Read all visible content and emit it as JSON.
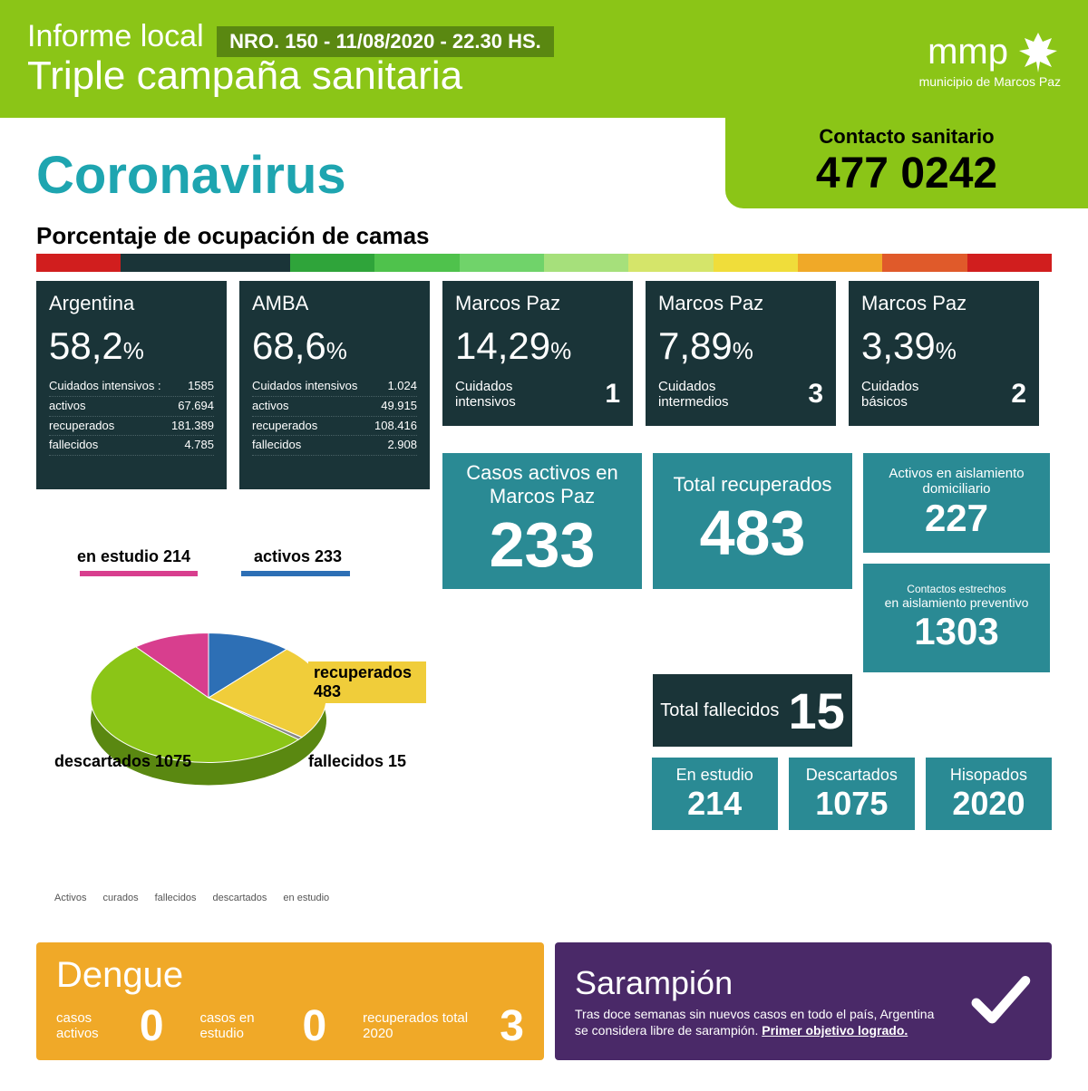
{
  "header": {
    "informe_label": "Informe local",
    "nro_badge": "NRO. 150 - 11/08/2020 - 22.30 HS.",
    "triple": "Triple campaña sanitaria",
    "logo_text": "mmp",
    "logo_sub": "municipio de Marcos Paz",
    "header_bg": "#8bc517",
    "badge_bg": "#5a8811"
  },
  "contact": {
    "label": "Contacto sanitario",
    "phone": "477 0242",
    "bg": "#8bc517"
  },
  "corona_title": "Coronavirus",
  "corona_title_color": "#1ea5b0",
  "occupancy_label": "Porcentaje de ocupación de camas",
  "color_strip": [
    "#d11e1e",
    "#1a3438",
    "#1a3438",
    "#2fa43a",
    "#4fc24c",
    "#70d36a",
    "#a6e07b",
    "#d5e56a",
    "#f0dd3a",
    "#f0a928",
    "#e05a2a",
    "#d11e1e"
  ],
  "cards": [
    {
      "title": "Argentina",
      "pct": "58,2",
      "tall": true,
      "lines": [
        {
          "label": "Cuidados intensivos :",
          "val": "1585"
        },
        {
          "label": "activos",
          "val": "67.694"
        },
        {
          "label": "recuperados",
          "val": "181.389"
        },
        {
          "label": "fallecidos",
          "val": "4.785"
        }
      ],
      "indicator_colors": [
        "#cfcfcf",
        "#a6e07b",
        "#70d36a",
        "#2fa43a",
        "#2a6b2e"
      ]
    },
    {
      "title": "AMBA",
      "pct": "68,6",
      "tall": true,
      "lines": [
        {
          "label": "Cuidados intensivos",
          "val": "1.024"
        },
        {
          "label": "activos",
          "val": "49.915"
        },
        {
          "label": "recuperados",
          "val": "108.416"
        },
        {
          "label": "fallecidos",
          "val": "2.908"
        }
      ],
      "indicator_colors": [
        "#cfcfcf",
        "#a6e07b",
        "#70d36a",
        "#2fa43a",
        "#2a6b2e"
      ]
    },
    {
      "title": "Marcos Paz",
      "pct": "14,29",
      "tall": false,
      "cuidados_label": "Cuidados intensivos",
      "cuidados_val": "1",
      "indicator_colors": [
        "#cfcfcf",
        "#cfcfcf",
        "#cfcfcf",
        "#cfcfcf",
        "#2a6b2e"
      ]
    },
    {
      "title": "Marcos Paz",
      "pct": "7,89",
      "tall": false,
      "cuidados_label": "Cuidados intermedios",
      "cuidados_val": "3",
      "indicator_colors": [
        "#cfcfcf",
        "#cfcfcf",
        "#cfcfcf",
        "#cfcfcf",
        "#2a6b2e"
      ]
    },
    {
      "title": "Marcos Paz",
      "pct": "3,39",
      "tall": false,
      "cuidados_label": "Cuidados básicos",
      "cuidados_val": "2",
      "indicator_colors": [
        "#cfcfcf",
        "#cfcfcf",
        "#cfcfcf",
        "#cfcfcf",
        "#2a6b2e"
      ]
    }
  ],
  "teal": {
    "bg": "#2a8a94",
    "dark_bg": "#1a3438",
    "casos_activos": {
      "label": "Casos activos en Marcos Paz",
      "val": "233"
    },
    "total_recuperados": {
      "label": "Total recuperados",
      "val": "483"
    },
    "activos_aisl": {
      "label": "Activos en aislamiento domiciliario",
      "val": "227"
    },
    "contactos": {
      "label1": "Contactos estrechos",
      "label2": "en aislamiento preventivo",
      "val": "1303"
    },
    "total_fallecidos": {
      "label": "Total fallecidos",
      "val": "15"
    },
    "en_estudio": {
      "label": "En estudio",
      "val": "214"
    },
    "descartados": {
      "label": "Descartados",
      "val": "1075"
    },
    "hisopados": {
      "label": "Hisopados",
      "val": "2020"
    }
  },
  "pie": {
    "type": "pie",
    "slices": [
      {
        "label": "descartados",
        "value": 1075,
        "color": "#8bc517",
        "text": "descartados 1075"
      },
      {
        "label": "recuperados",
        "value": 483,
        "color": "#f0cd3a",
        "text": "recuperados 483"
      },
      {
        "label": "en estudio",
        "value": 214,
        "color": "#d83e8e",
        "text": "en estudio 214"
      },
      {
        "label": "activos",
        "value": 233,
        "color": "#2d6fb5",
        "text": "activos 233"
      },
      {
        "label": "fallecidos",
        "value": 15,
        "color": "#888888",
        "text": "fallecidos 15"
      }
    ],
    "side_color": "#5a8811",
    "legend": [
      "Activos",
      "curados",
      "fallecidos",
      "descartados",
      "en estudio"
    ]
  },
  "dengue": {
    "title": "Dengue",
    "bg": "#f0a928",
    "stats": [
      {
        "label": "casos activos",
        "val": "0"
      },
      {
        "label": "casos en estudio",
        "val": "0"
      },
      {
        "label": "recuperados total 2020",
        "val": "3"
      }
    ]
  },
  "sarampion": {
    "title": "Sarampión",
    "bg": "#4a2968",
    "text": "Tras doce semanas sin nuevos casos en todo el país, Argentina se considera libre de sarampión.",
    "bold": "Primer objetivo logrado."
  }
}
